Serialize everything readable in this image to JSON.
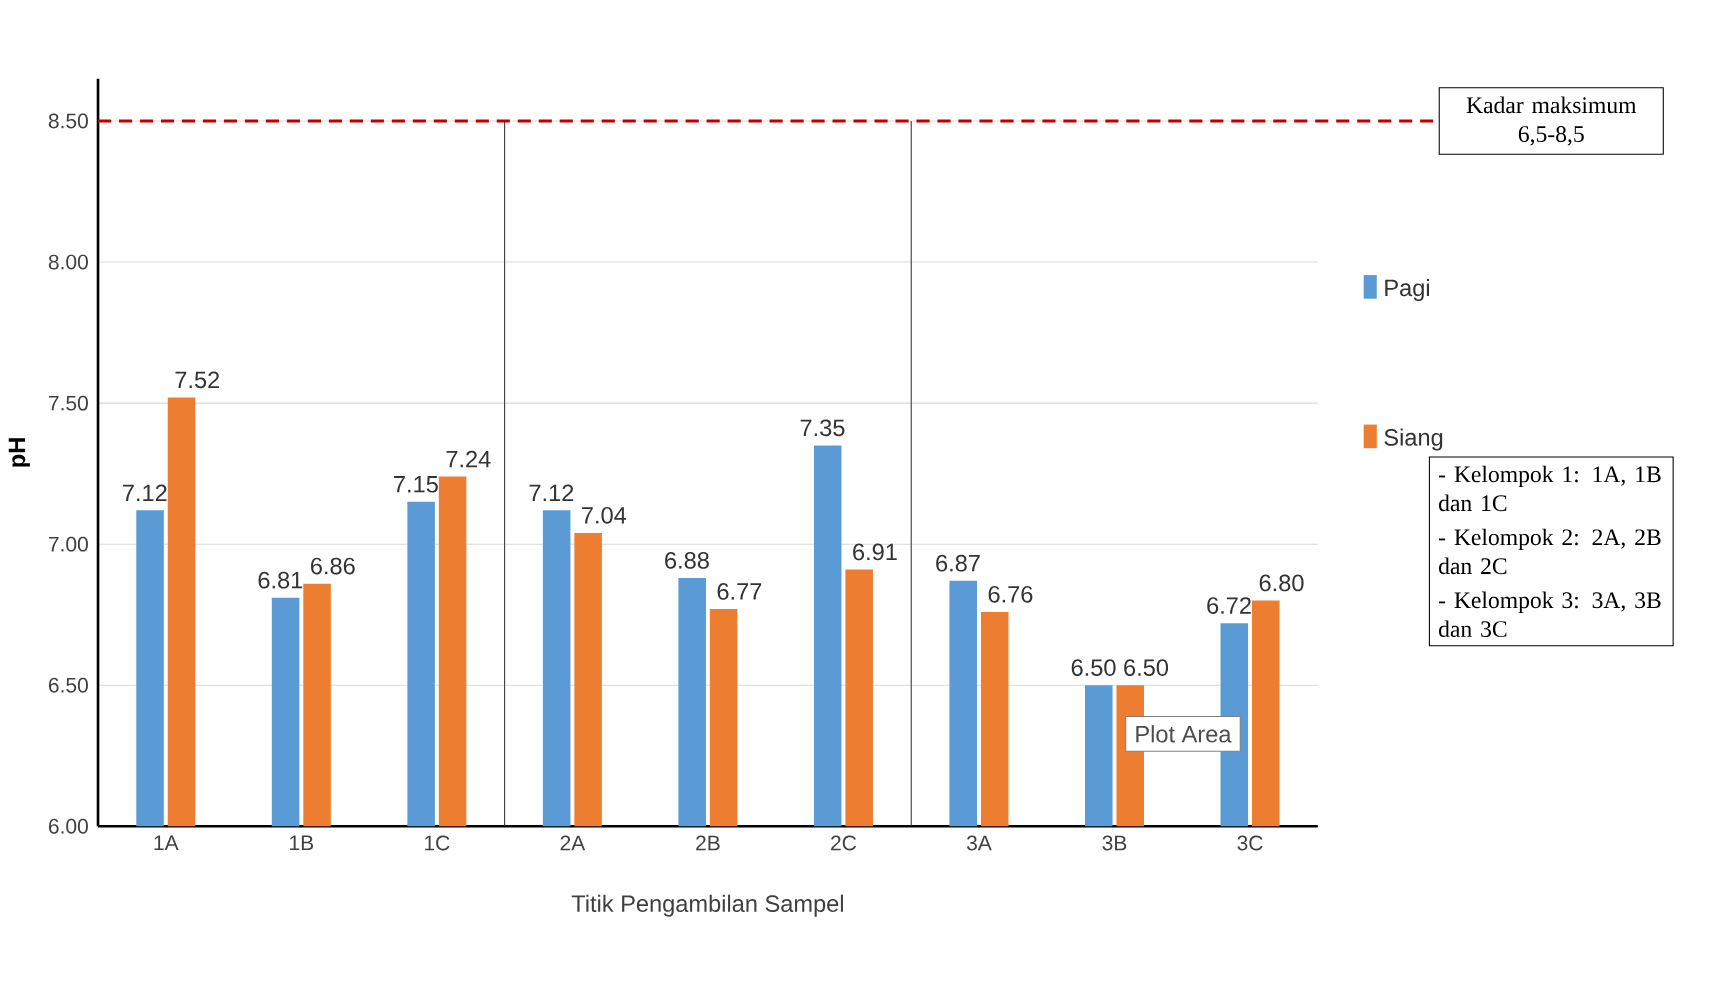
{
  "chart_data": {
    "type": "bar",
    "xlabel": "Titik Pengambilan Sampel",
    "ylabel": "pH",
    "categories": [
      "1A",
      "1B",
      "1C",
      "2A",
      "2B",
      "2C",
      "3A",
      "3B",
      "3C"
    ],
    "series": [
      {
        "name": "Pagi",
        "color": "#5b9bd5",
        "values": [
          7.12,
          6.81,
          7.15,
          7.12,
          6.88,
          7.35,
          6.87,
          6.5,
          6.72
        ],
        "value_labels": [
          "7.12",
          "6.81",
          "7.15",
          "7.12",
          "6.88",
          "7.35",
          "6.87",
          "6.50",
          "6.72"
        ]
      },
      {
        "name": "Siang",
        "color": "#ed7d31",
        "values": [
          7.52,
          6.86,
          7.24,
          7.04,
          6.77,
          6.91,
          6.76,
          6.5,
          6.8
        ],
        "value_labels": [
          "7.52",
          "6.86",
          "7.24",
          "7.04",
          "6.77",
          "6.91",
          "6.76",
          "6.50",
          "6.80"
        ]
      }
    ],
    "ylim": [
      6,
      8.65
    ],
    "yticks": [
      {
        "value": 6,
        "label": "6.00"
      },
      {
        "value": 6.5,
        "label": "6.50"
      },
      {
        "value": 7,
        "label": "7.00"
      },
      {
        "value": 7.5,
        "label": "7.50"
      },
      {
        "value": 8,
        "label": "8.00"
      },
      {
        "value": 8.5,
        "label": "8.50"
      }
    ],
    "ref_lines": [
      {
        "axis": "y",
        "value": 8.5,
        "label": "Kadar maksimum 6,5-8,5",
        "color": "#c00000",
        "line_style": "dashed"
      }
    ],
    "annotations": [
      "- Kelompok 1: 1A, 1B dan 1C",
      "- Kelompok 2: 2A, 2B dan 2C",
      "- Kelompok 3: 3A, 3B dan 3C",
      "Plot Area"
    ],
    "legend": "right",
    "grid": "y"
  }
}
